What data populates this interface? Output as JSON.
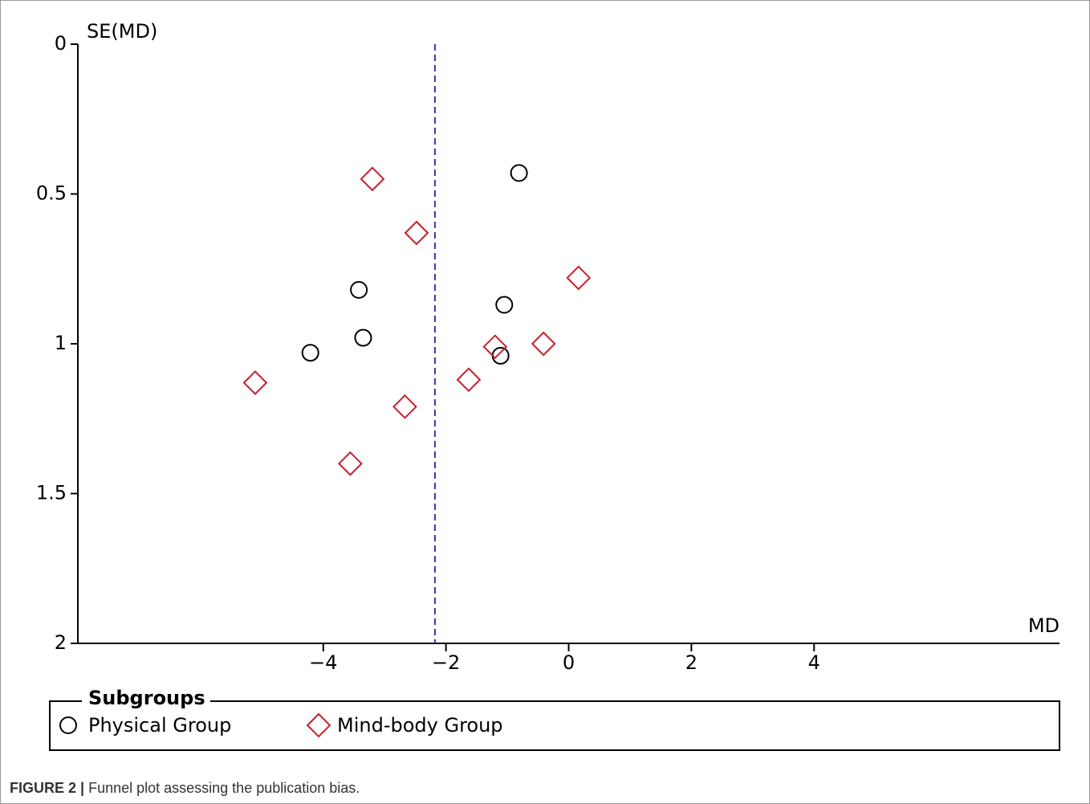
{
  "chart_data": {
    "type": "scatter",
    "ylabel": "SE(MD)",
    "xlabel": "MD",
    "xlim": [
      -8,
      8
    ],
    "xticks": [
      {
        "value": -4,
        "label": "−4"
      },
      {
        "value": -2,
        "label": "−2"
      },
      0,
      2,
      4
    ],
    "ylim": [
      0,
      2
    ],
    "yticks": [
      0,
      {
        "value": 0.5,
        "label": "0.5"
      },
      1,
      {
        "value": 1.5,
        "label": "1.5"
      },
      2
    ],
    "y_inverted": true,
    "reference_line": -2.18,
    "reference_color": "#3333aa",
    "legend_title": "Subgroups",
    "series": [
      {
        "name": "Physical Group",
        "color": "#000000",
        "marker": "circle",
        "x": [
          -0.81,
          -3.42,
          -1.05,
          -3.35,
          -4.21,
          -1.11
        ],
        "values": [
          0.43,
          0.82,
          0.87,
          0.98,
          1.03,
          1.04
        ]
      },
      {
        "name": "Mind-body Group",
        "color": "#c8202c",
        "marker": "diamond",
        "x": [
          -3.2,
          -2.48,
          0.16,
          -1.2,
          -0.41,
          -1.63,
          -5.11,
          -2.67,
          -3.56
        ],
        "values": [
          0.45,
          0.63,
          0.78,
          1.01,
          1.0,
          1.12,
          1.13,
          1.21,
          1.4
        ]
      }
    ],
    "caption_label": "FIGURE 2 |",
    "caption": "Funnel plot assessing the publication bias."
  }
}
